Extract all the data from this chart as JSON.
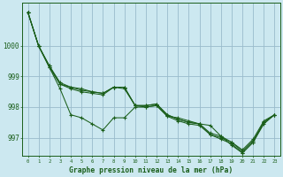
{
  "xlabel": "Graphe pression niveau de la mer (hPa)",
  "bg_color": "#cce8f0",
  "grid_color": "#99bbcc",
  "line_color": "#1a5e1a",
  "text_color": "#1a5e1a",
  "xlim": [
    -0.5,
    23.5
  ],
  "ylim": [
    996.4,
    1001.4
  ],
  "yticks": [
    997,
    998,
    999,
    1000
  ],
  "xticks": [
    0,
    1,
    2,
    3,
    4,
    5,
    6,
    7,
    8,
    9,
    10,
    11,
    12,
    13,
    14,
    15,
    16,
    17,
    18,
    19,
    20,
    21,
    22,
    23
  ],
  "line1": [
    1001.1,
    1000.0,
    999.3,
    998.6,
    997.75,
    997.65,
    997.45,
    997.25,
    997.65,
    997.65,
    998.0,
    998.0,
    998.05,
    997.7,
    997.65,
    997.55,
    997.45,
    997.4,
    997.05,
    996.75,
    996.5,
    996.85,
    997.5,
    997.75
  ],
  "line2": [
    1001.1,
    1000.0,
    999.3,
    998.75,
    998.6,
    998.5,
    998.45,
    998.4,
    998.65,
    998.6,
    998.05,
    998.05,
    998.1,
    997.75,
    997.6,
    997.5,
    997.45,
    997.15,
    997.05,
    996.85,
    996.6,
    996.95,
    997.55,
    997.75
  ],
  "line3": [
    1001.1,
    1000.0,
    999.35,
    998.75,
    998.65,
    998.55,
    998.5,
    998.45,
    998.65,
    998.65,
    998.05,
    998.05,
    998.1,
    997.75,
    997.6,
    997.5,
    997.45,
    997.1,
    997.0,
    996.85,
    996.55,
    996.9,
    997.5,
    997.75
  ],
  "line4": [
    1001.1,
    1000.0,
    999.35,
    998.8,
    998.65,
    998.6,
    998.5,
    998.45,
    998.65,
    998.65,
    998.05,
    998.0,
    998.05,
    997.7,
    997.55,
    997.45,
    997.4,
    997.1,
    996.95,
    996.8,
    996.5,
    996.85,
    997.45,
    997.75
  ]
}
